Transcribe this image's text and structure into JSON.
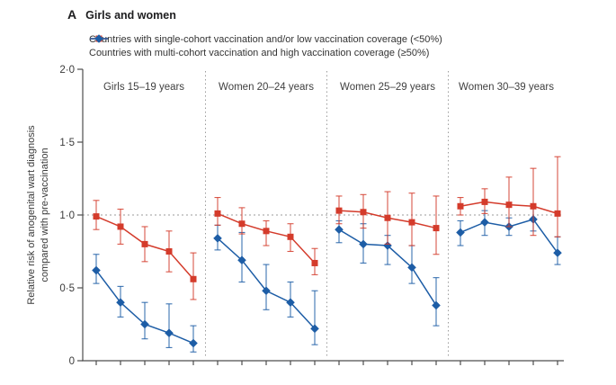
{
  "figure": {
    "panel_letter": "A",
    "title": "Girls and women"
  },
  "legend": {
    "items": [
      {
        "label": "Countries with single-cohort vaccination and/or low vaccination coverage (<50%)",
        "color": "#d43b2b",
        "marker": "square"
      },
      {
        "label": "Countries with multi-cohort vaccination and high vaccination coverage (≥50%)",
        "color": "#1d5da6",
        "marker": "diamond"
      }
    ]
  },
  "chart_data": {
    "type": "line",
    "title": "Girls and women",
    "ylabel_line1": "Relative risk of anogenital wart diagnosis",
    "ylabel_line2": "compared with pre-vaccination",
    "xlabel": "",
    "ylim": [
      0,
      2.0
    ],
    "ytick_values": [
      2.0,
      1.5,
      1.0,
      0.5,
      0
    ],
    "ytick_labels": [
      "2·0",
      "1·5",
      "1·0",
      "0·5",
      "0"
    ],
    "reference_line_y": 1.0,
    "grid": "off",
    "legend_position": "top-left",
    "x_ticks_per_panel": 5,
    "colors": {
      "single_cohort": "#d43b2b",
      "multi_cohort": "#1d5da6",
      "axis": "#4d4d4d",
      "dashed_guides": "#9b9b9b",
      "text": "#3a3a3a"
    },
    "panels": [
      {
        "title": "Girls 15–19 years",
        "series": [
          {
            "name": "single-cohort / low coverage (<50%)",
            "marker": "square",
            "values": [
              0.99,
              0.92,
              0.8,
              0.75,
              0.56
            ],
            "ci_low": [
              0.9,
              0.8,
              0.68,
              0.61,
              0.42
            ],
            "ci_high": [
              1.1,
              1.04,
              0.92,
              0.89,
              0.74
            ]
          },
          {
            "name": "multi-cohort / high coverage (≥50%)",
            "marker": "diamond",
            "values": [
              0.62,
              0.4,
              0.25,
              0.19,
              0.12
            ],
            "ci_low": [
              0.53,
              0.3,
              0.15,
              0.09,
              0.06
            ],
            "ci_high": [
              0.73,
              0.51,
              0.4,
              0.39,
              0.24
            ]
          }
        ]
      },
      {
        "title": "Women 20–24 years",
        "series": [
          {
            "name": "single-cohort / low coverage (<50%)",
            "marker": "square",
            "values": [
              1.01,
              0.94,
              0.89,
              0.85,
              0.67
            ],
            "ci_low": [
              0.93,
              0.87,
              0.79,
              0.75,
              0.59
            ],
            "ci_high": [
              1.12,
              1.05,
              0.96,
              0.94,
              0.77
            ]
          },
          {
            "name": "multi-cohort / high coverage (≥50%)",
            "marker": "diamond",
            "values": [
              0.84,
              0.69,
              0.48,
              0.4,
              0.22
            ],
            "ci_low": [
              0.76,
              0.54,
              0.35,
              0.3,
              0.11
            ],
            "ci_high": [
              0.93,
              0.88,
              0.66,
              0.54,
              0.48
            ]
          }
        ]
      },
      {
        "title": "Women 25–29 years",
        "series": [
          {
            "name": "single-cohort / low coverage (<50%)",
            "marker": "square",
            "values": [
              1.03,
              1.02,
              0.98,
              0.95,
              0.91
            ],
            "ci_low": [
              0.94,
              0.91,
              0.8,
              0.79,
              0.73
            ],
            "ci_high": [
              1.13,
              1.14,
              1.16,
              1.15,
              1.13
            ]
          },
          {
            "name": "multi-cohort / high coverage (≥50%)",
            "marker": "diamond",
            "values": [
              0.9,
              0.8,
              0.79,
              0.64,
              0.38
            ],
            "ci_low": [
              0.81,
              0.67,
              0.66,
              0.53,
              0.24
            ],
            "ci_high": [
              0.96,
              0.94,
              0.86,
              0.79,
              0.57
            ]
          }
        ]
      },
      {
        "title": "Women 30–39 years",
        "series": [
          {
            "name": "single-cohort / low coverage (<50%)",
            "marker": "square",
            "values": [
              1.06,
              1.09,
              1.07,
              1.06,
              1.01
            ],
            "ci_low": [
              1.0,
              1.01,
              0.92,
              0.86,
              0.85
            ],
            "ci_high": [
              1.12,
              1.18,
              1.26,
              1.32,
              1.4
            ]
          },
          {
            "name": "multi-cohort / high coverage (≥50%)",
            "marker": "diamond",
            "values": [
              0.88,
              0.95,
              0.92,
              0.97,
              0.74
            ],
            "ci_low": [
              0.79,
              0.86,
              0.86,
              0.89,
              0.66
            ],
            "ci_high": [
              0.96,
              1.03,
              0.98,
              1.05,
              0.85
            ]
          }
        ]
      }
    ]
  }
}
